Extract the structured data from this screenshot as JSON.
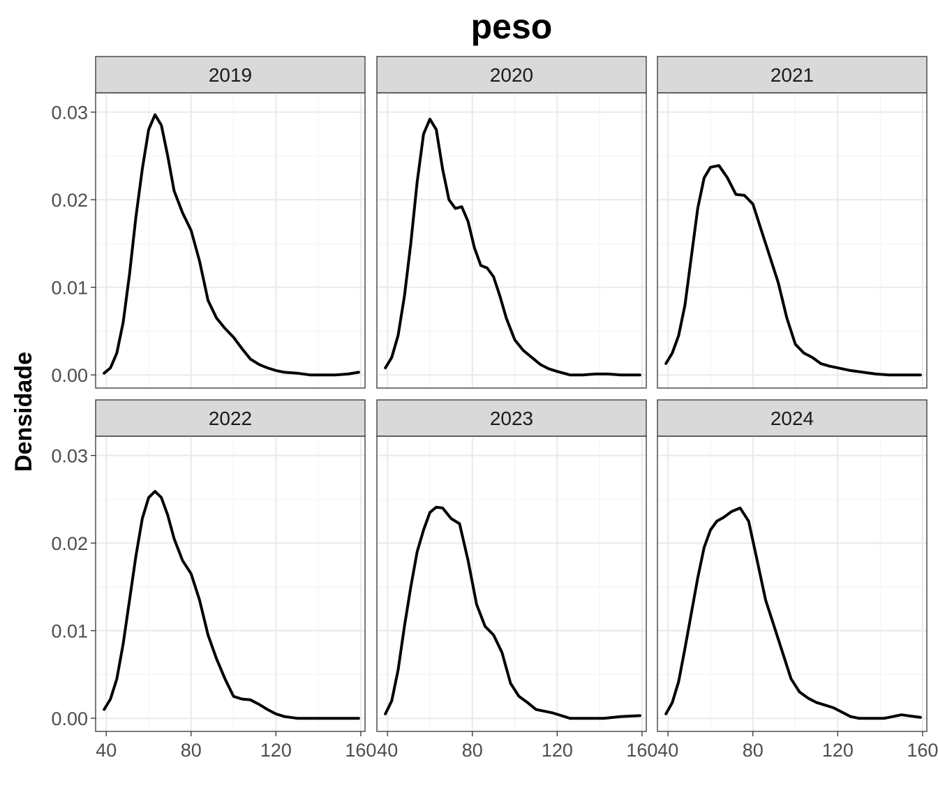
{
  "chart_data": {
    "type": "line",
    "title": "peso",
    "xlabel": "",
    "ylabel": "Densidade",
    "xlim": [
      35,
      162
    ],
    "ylim": [
      -0.0015,
      0.0322
    ],
    "x_ticks": [
      40,
      80,
      120,
      160
    ],
    "x_tick_labels": [
      "40",
      "80",
      "120",
      "160"
    ],
    "y_ticks": [
      0,
      0.01,
      0.02,
      0.03
    ],
    "y_tick_labels": [
      "0.00",
      "0.01",
      "0.02",
      "0.03"
    ],
    "grid": true,
    "layout": "facet 2x3",
    "panels": [
      {
        "label": "2019",
        "x": [
          39,
          42,
          45,
          48,
          51,
          54,
          57,
          60,
          63,
          66,
          69,
          72,
          76,
          80,
          84,
          88,
          92,
          96,
          100,
          104,
          108,
          112,
          116,
          120,
          124,
          130,
          136,
          142,
          148,
          154,
          159
        ],
        "y": [
          0.0002,
          0.0008,
          0.0025,
          0.006,
          0.0115,
          0.018,
          0.0235,
          0.028,
          0.0297,
          0.0285,
          0.025,
          0.021,
          0.0185,
          0.0165,
          0.013,
          0.0085,
          0.0065,
          0.0053,
          0.0043,
          0.003,
          0.0018,
          0.0012,
          0.0008,
          0.0005,
          0.0003,
          0.0002,
          0.0,
          0.0,
          0.0,
          0.0001,
          0.0003
        ]
      },
      {
        "label": "2020",
        "x": [
          39,
          42,
          45,
          48,
          51,
          54,
          57,
          60,
          63,
          66,
          69,
          72,
          75,
          78,
          81,
          84,
          87,
          90,
          93,
          96,
          100,
          104,
          108,
          112,
          116,
          120,
          126,
          132,
          138,
          144,
          150,
          159
        ],
        "y": [
          0.0008,
          0.002,
          0.0045,
          0.009,
          0.015,
          0.022,
          0.0275,
          0.0292,
          0.028,
          0.0235,
          0.02,
          0.019,
          0.0192,
          0.0175,
          0.0145,
          0.0125,
          0.0122,
          0.0112,
          0.009,
          0.0065,
          0.004,
          0.0028,
          0.002,
          0.0012,
          0.0007,
          0.0004,
          0.0,
          0.0,
          0.0001,
          0.0001,
          0.0,
          0.0
        ]
      },
      {
        "label": "2021",
        "x": [
          39,
          42,
          45,
          48,
          51,
          54,
          57,
          60,
          64,
          68,
          72,
          76,
          80,
          84,
          88,
          92,
          96,
          100,
          104,
          108,
          112,
          116,
          120,
          126,
          132,
          138,
          144,
          150,
          159
        ],
        "y": [
          0.0013,
          0.0025,
          0.0045,
          0.008,
          0.0135,
          0.019,
          0.0225,
          0.0237,
          0.0239,
          0.0225,
          0.0206,
          0.0205,
          0.0195,
          0.0165,
          0.0135,
          0.0105,
          0.0065,
          0.0035,
          0.0025,
          0.002,
          0.0013,
          0.001,
          0.0008,
          0.0005,
          0.0003,
          0.0001,
          0.0,
          0.0,
          0.0
        ]
      },
      {
        "label": "2022",
        "x": [
          39,
          42,
          45,
          48,
          51,
          54,
          57,
          60,
          63,
          66,
          69,
          72,
          76,
          80,
          84,
          88,
          92,
          96,
          100,
          104,
          108,
          112,
          116,
          120,
          124,
          130,
          136,
          142,
          150,
          159
        ],
        "y": [
          0.001,
          0.0022,
          0.0045,
          0.0085,
          0.0135,
          0.0185,
          0.0228,
          0.0252,
          0.0259,
          0.0252,
          0.0232,
          0.0205,
          0.018,
          0.0165,
          0.0135,
          0.0095,
          0.0068,
          0.0045,
          0.0025,
          0.0022,
          0.0021,
          0.0016,
          0.001,
          0.0005,
          0.0002,
          0.0,
          0.0,
          0.0,
          0.0,
          0.0
        ]
      },
      {
        "label": "2023",
        "x": [
          39,
          42,
          45,
          48,
          51,
          54,
          57,
          60,
          63,
          66,
          70,
          74,
          78,
          82,
          86,
          90,
          94,
          98,
          102,
          106,
          110,
          114,
          118,
          122,
          126,
          130,
          136,
          142,
          150,
          159
        ],
        "y": [
          0.0005,
          0.002,
          0.0055,
          0.0105,
          0.015,
          0.019,
          0.0215,
          0.0235,
          0.0241,
          0.024,
          0.0228,
          0.0222,
          0.018,
          0.013,
          0.0105,
          0.0095,
          0.0075,
          0.004,
          0.0025,
          0.0018,
          0.001,
          0.0008,
          0.0006,
          0.0003,
          0.0,
          0.0,
          0.0,
          0.0,
          0.0002,
          0.0003
        ]
      },
      {
        "label": "2024",
        "x": [
          39,
          42,
          45,
          48,
          51,
          54,
          57,
          60,
          63,
          66,
          70,
          74,
          78,
          82,
          86,
          90,
          94,
          98,
          102,
          106,
          110,
          114,
          118,
          122,
          126,
          130,
          136,
          142,
          150,
          159
        ],
        "y": [
          0.0005,
          0.0018,
          0.0042,
          0.008,
          0.012,
          0.016,
          0.0195,
          0.0215,
          0.0225,
          0.0229,
          0.0236,
          0.024,
          0.0225,
          0.018,
          0.0135,
          0.0105,
          0.0075,
          0.0045,
          0.003,
          0.0023,
          0.0018,
          0.0015,
          0.0012,
          0.0007,
          0.0002,
          0.0,
          0.0,
          0.0,
          0.0004,
          0.0001
        ]
      }
    ]
  }
}
